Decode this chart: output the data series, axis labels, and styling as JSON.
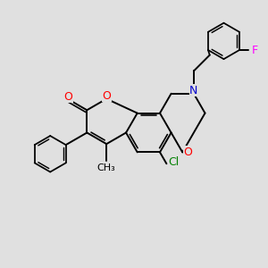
{
  "bg_color": "#e0e0e0",
  "bond_color": "#000000",
  "bw": 1.4,
  "atom_colors": {
    "O": "#ff0000",
    "N": "#0000cd",
    "Cl": "#008000",
    "F": "#ff00ff",
    "C": "#000000"
  },
  "fs": 9
}
